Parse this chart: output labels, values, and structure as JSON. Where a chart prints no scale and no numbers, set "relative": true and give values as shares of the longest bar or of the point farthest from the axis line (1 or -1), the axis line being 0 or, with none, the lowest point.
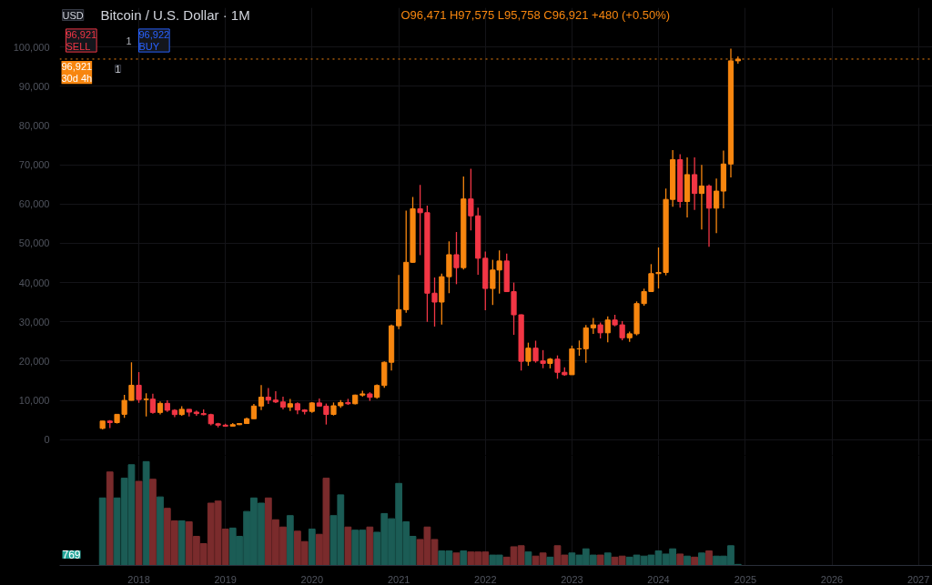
{
  "chart_data": [
    {
      "type": "candlestick",
      "title": "Bitcoin / U.S. Dollar · 1M",
      "annotations": [
        "USD",
        "O96,471 H97,575 L95,758 C96,921 +480 (+0.50%)",
        "96,921 SELL",
        "1",
        "96,922 BUY",
        "1"
      ],
      "x": [
        "2017-08",
        "2017-09",
        "2017-10",
        "2017-11",
        "2017-12",
        "2018-01",
        "2018-02",
        "2018-03",
        "2018-04",
        "2018-05",
        "2018-06",
        "2018-07",
        "2018-08",
        "2018-09",
        "2018-10",
        "2018-11",
        "2018-12",
        "2019-01",
        "2019-02",
        "2019-03",
        "2019-04",
        "2019-05",
        "2019-06",
        "2019-07",
        "2019-08",
        "2019-09",
        "2019-10",
        "2019-11",
        "2019-12",
        "2020-01",
        "2020-02",
        "2020-03",
        "2020-04",
        "2020-05",
        "2020-06",
        "2020-07",
        "2020-08",
        "2020-09",
        "2020-10",
        "2020-11",
        "2020-12",
        "2021-01",
        "2021-02",
        "2021-03",
        "2021-04",
        "2021-05",
        "2021-06",
        "2021-07",
        "2021-08",
        "2021-09",
        "2021-10",
        "2021-11",
        "2021-12",
        "2022-01",
        "2022-02",
        "2022-03",
        "2022-04",
        "2022-05",
        "2022-06",
        "2022-07",
        "2022-08",
        "2022-09",
        "2022-10",
        "2022-11",
        "2022-12",
        "2023-01",
        "2023-02",
        "2023-03",
        "2023-04",
        "2023-05",
        "2023-06",
        "2023-07",
        "2023-08",
        "2023-09",
        "2023-10",
        "2023-11",
        "2023-12",
        "2024-01",
        "2024-02",
        "2024-03",
        "2024-04",
        "2024-05",
        "2024-06",
        "2024-07",
        "2024-08",
        "2024-09",
        "2024-10",
        "2024-11",
        "2024-12"
      ],
      "ohlc": [
        [
          2870,
          4750,
          2620,
          4735
        ],
        [
          4735,
          4975,
          2972,
          4338
        ],
        [
          4338,
          6470,
          4110,
          6450
        ],
        [
          6450,
          11400,
          5550,
          10000
        ],
        [
          10000,
          19666,
          9950,
          13850
        ],
        [
          13850,
          17200,
          9400,
          10220
        ],
        [
          10220,
          11790,
          5920,
          10320
        ],
        [
          10320,
          11700,
          6600,
          6925
        ],
        [
          6925,
          9750,
          6430,
          9240
        ],
        [
          9240,
          9990,
          7060,
          7490
        ],
        [
          7490,
          7760,
          5750,
          6390
        ],
        [
          6390,
          8500,
          6070,
          7730
        ],
        [
          7730,
          7750,
          5880,
          7010
        ],
        [
          7010,
          7400,
          6100,
          6630
        ],
        [
          6630,
          7680,
          6200,
          6370
        ],
        [
          6370,
          6600,
          3650,
          4040
        ],
        [
          4040,
          4260,
          3120,
          3690
        ],
        [
          3690,
          4060,
          3350,
          3440
        ],
        [
          3440,
          4200,
          3390,
          3820
        ],
        [
          3820,
          4150,
          3730,
          4100
        ],
        [
          4100,
          5630,
          4050,
          5320
        ],
        [
          5320,
          9100,
          5320,
          8560
        ],
        [
          8560,
          13880,
          7500,
          10820
        ],
        [
          10820,
          13140,
          9070,
          10080
        ],
        [
          10080,
          12330,
          9340,
          9600
        ],
        [
          9600,
          10950,
          7710,
          8300
        ],
        [
          8300,
          10370,
          7300,
          9150
        ],
        [
          9150,
          9510,
          6500,
          7550
        ],
        [
          7550,
          7740,
          6430,
          7190
        ],
        [
          7190,
          9580,
          6860,
          9350
        ],
        [
          9350,
          10500,
          8450,
          8540
        ],
        [
          8540,
          9190,
          3850,
          6420
        ],
        [
          6420,
          9460,
          6150,
          8630
        ],
        [
          8630,
          10080,
          8110,
          9450
        ],
        [
          9450,
          10390,
          8840,
          9140
        ],
        [
          9140,
          11440,
          8970,
          11350
        ],
        [
          11350,
          12480,
          10950,
          11650
        ],
        [
          11650,
          12070,
          9880,
          10780
        ],
        [
          10780,
          14100,
          10430,
          13800
        ],
        [
          13800,
          19900,
          13200,
          19700
        ],
        [
          19700,
          29300,
          17600,
          28990
        ],
        [
          28990,
          41950,
          28150,
          33110
        ],
        [
          33110,
          58350,
          32300,
          45160
        ],
        [
          45160,
          61780,
          45000,
          58800
        ],
        [
          58800,
          64900,
          47000,
          57800
        ],
        [
          57800,
          59600,
          30000,
          37300
        ],
        [
          37300,
          41300,
          28800,
          35040
        ],
        [
          35040,
          42300,
          29300,
          41500
        ],
        [
          41500,
          50500,
          37300,
          47100
        ],
        [
          47100,
          52900,
          39600,
          43800
        ],
        [
          43800,
          67000,
          43300,
          61300
        ],
        [
          61300,
          69000,
          53300,
          57000
        ],
        [
          57000,
          59100,
          42000,
          46200
        ],
        [
          46200,
          47900,
          32950,
          38500
        ],
        [
          38500,
          45800,
          34300,
          43200
        ],
        [
          43200,
          48200,
          37200,
          45500
        ],
        [
          45500,
          47400,
          37600,
          37700
        ],
        [
          37700,
          40000,
          26700,
          31800
        ],
        [
          31800,
          31900,
          17600,
          19950
        ],
        [
          19950,
          24700,
          18800,
          23300
        ],
        [
          23300,
          25200,
          19600,
          20050
        ],
        [
          20050,
          22800,
          18200,
          19420
        ],
        [
          19420,
          20800,
          18150,
          20500
        ],
        [
          20500,
          21450,
          15500,
          17150
        ],
        [
          17150,
          18400,
          16300,
          16530
        ],
        [
          16530,
          23950,
          16500,
          23120
        ],
        [
          23120,
          25250,
          21350,
          23140
        ],
        [
          23140,
          29200,
          19550,
          28470
        ],
        [
          28470,
          31000,
          26950,
          29230
        ],
        [
          29230,
          29830,
          25800,
          27210
        ],
        [
          27210,
          31400,
          24800,
          30470
        ],
        [
          30470,
          31800,
          28850,
          29230
        ],
        [
          29230,
          30200,
          25300,
          25940
        ],
        [
          25940,
          27500,
          24900,
          26960
        ],
        [
          26960,
          35200,
          26550,
          34650
        ],
        [
          34650,
          38450,
          34100,
          37720
        ],
        [
          37720,
          44700,
          37600,
          42280
        ],
        [
          42280,
          48950,
          38500,
          42580
        ],
        [
          42580,
          63950,
          41850,
          61180
        ],
        [
          61180,
          73750,
          59300,
          71300
        ],
        [
          71300,
          72700,
          59100,
          60650
        ],
        [
          60650,
          71900,
          56600,
          67500
        ],
        [
          67500,
          71900,
          58500,
          62700
        ],
        [
          62700,
          70000,
          53500,
          64600
        ],
        [
          64600,
          65000,
          49100,
          58950
        ],
        [
          58950,
          66500,
          52600,
          63300
        ],
        [
          63300,
          73600,
          58900,
          70200
        ],
        [
          70200,
          99600,
          66800,
          96471
        ],
        [
          96471,
          97575,
          95758,
          96921
        ]
      ],
      "colors": [
        "#f7860f",
        "#f23645",
        "#f7860f",
        "#f7860f",
        "#f7860f",
        "#f23645",
        "#f7860f",
        "#f23645",
        "#f7860f",
        "#f23645",
        "#f23645",
        "#f7860f",
        "#f23645",
        "#f23645",
        "#f23645",
        "#f23645",
        "#f23645",
        "#f23645",
        "#f7860f",
        "#f7860f",
        "#f7860f",
        "#f7860f",
        "#f7860f",
        "#f23645",
        "#f23645",
        "#f23645",
        "#f7860f",
        "#f23645",
        "#f23645",
        "#f7860f",
        "#f23645",
        "#f23645",
        "#f7860f",
        "#f7860f",
        "#f23645",
        "#f7860f",
        "#f7860f",
        "#f23645",
        "#f7860f",
        "#f7860f",
        "#f7860f",
        "#f7860f",
        "#f7860f",
        "#f7860f",
        "#f23645",
        "#f23645",
        "#f23645",
        "#f7860f",
        "#f7860f",
        "#f23645",
        "#f7860f",
        "#f23645",
        "#f23645",
        "#f23645",
        "#f7860f",
        "#f7860f",
        "#f23645",
        "#f23645",
        "#f23645",
        "#f7860f",
        "#f23645",
        "#f23645",
        "#f7860f",
        "#f23645",
        "#f23645",
        "#f7860f",
        "#f7860f",
        "#f7860f",
        "#f7860f",
        "#f23645",
        "#f7860f",
        "#f23645",
        "#f23645",
        "#f7860f",
        "#f7860f",
        "#f7860f",
        "#f7860f",
        "#f7860f",
        "#f7860f",
        "#f7860f",
        "#f23645",
        "#f7860f",
        "#f23645",
        "#f7860f",
        "#f23645",
        "#f7860f",
        "#f7860f",
        "#f7860f",
        "#f7860f"
      ],
      "xlim": [
        "2017-02",
        "2027-03"
      ],
      "xticks": [
        "2018",
        "2019",
        "2020",
        "2021",
        "2022",
        "2023",
        "2024",
        "2025",
        "2026",
        "2027"
      ],
      "ylim": [
        -4000,
        110000
      ],
      "yticks": [
        0,
        {
          "value": 10000,
          "label": "10,000"
        },
        {
          "value": 20000,
          "label": "20,000"
        },
        {
          "value": 30000,
          "label": "30,000"
        },
        {
          "value": 40000,
          "label": "40,000"
        },
        {
          "value": 50000,
          "label": "50,000"
        },
        {
          "value": 60000,
          "label": "60,000"
        },
        {
          "value": 70000,
          "label": "70,000"
        },
        {
          "value": 80000,
          "label": "80,000"
        },
        {
          "value": 90000,
          "label": "90,000"
        },
        {
          "value": 100000,
          "label": "100,000"
        }
      ],
      "ref_lines": [
        {
          "axis": "y",
          "value": 96921,
          "label": "96,921\n30d 4h",
          "color": "#f7860f",
          "line_style": "dotted"
        }
      ],
      "tick_labels": "y",
      "grid": true
    },
    {
      "type": "bar",
      "relative": true,
      "annotations": [
        "769"
      ],
      "x": [
        "2017-08",
        "2017-09",
        "2017-10",
        "2017-11",
        "2017-12",
        "2018-01",
        "2018-02",
        "2018-03",
        "2018-04",
        "2018-05",
        "2018-06",
        "2018-07",
        "2018-08",
        "2018-09",
        "2018-10",
        "2018-11",
        "2018-12",
        "2019-01",
        "2019-02",
        "2019-03",
        "2019-04",
        "2019-05",
        "2019-06",
        "2019-07",
        "2019-08",
        "2019-09",
        "2019-10",
        "2019-11",
        "2019-12",
        "2020-01",
        "2020-02",
        "2020-03",
        "2020-04",
        "2020-05",
        "2020-06",
        "2020-07",
        "2020-08",
        "2020-09",
        "2020-10",
        "2020-11",
        "2020-12",
        "2021-01",
        "2021-02",
        "2021-03",
        "2021-04",
        "2021-05",
        "2021-06",
        "2021-07",
        "2021-08",
        "2021-09",
        "2021-10",
        "2021-11",
        "2021-12",
        "2022-01",
        "2022-02",
        "2022-03",
        "2022-04",
        "2022-05",
        "2022-06",
        "2022-07",
        "2022-08",
        "2022-09",
        "2022-10",
        "2022-11",
        "2022-12",
        "2023-01",
        "2023-02",
        "2023-03",
        "2023-04",
        "2023-05",
        "2023-06",
        "2023-07",
        "2023-08",
        "2023-09",
        "2023-10",
        "2023-11",
        "2023-12",
        "2024-01",
        "2024-02",
        "2024-03",
        "2024-04",
        "2024-05",
        "2024-06",
        "2024-07",
        "2024-08",
        "2024-09",
        "2024-10",
        "2024-11",
        "2024-12"
      ],
      "values": [
        0.65,
        0.9,
        0.65,
        0.84,
        0.97,
        0.81,
        1.0,
        0.83,
        0.66,
        0.55,
        0.43,
        0.43,
        0.42,
        0.28,
        0.21,
        0.6,
        0.62,
        0.35,
        0.36,
        0.28,
        0.52,
        0.65,
        0.6,
        0.65,
        0.44,
        0.37,
        0.48,
        0.33,
        0.23,
        0.35,
        0.3,
        0.84,
        0.48,
        0.68,
        0.37,
        0.34,
        0.34,
        0.37,
        0.32,
        0.5,
        0.45,
        0.79,
        0.42,
        0.28,
        0.25,
        0.37,
        0.25,
        0.14,
        0.14,
        0.12,
        0.14,
        0.13,
        0.13,
        0.13,
        0.1,
        0.1,
        0.08,
        0.18,
        0.19,
        0.13,
        0.09,
        0.12,
        0.08,
        0.19,
        0.1,
        0.12,
        0.1,
        0.16,
        0.1,
        0.1,
        0.12,
        0.08,
        0.09,
        0.08,
        0.1,
        0.09,
        0.1,
        0.14,
        0.11,
        0.16,
        0.11,
        0.09,
        0.08,
        0.12,
        0.14,
        0.09,
        0.09,
        0.19,
        0.01
      ],
      "colors": [
        "#1b5c55",
        "#7a2b2c",
        "#1b5c55",
        "#1b5c55",
        "#1b5c55",
        "#7a2b2c",
        "#1b5c55",
        "#7a2b2c",
        "#1b5c55",
        "#7a2b2c",
        "#7a2b2c",
        "#1b5c55",
        "#7a2b2c",
        "#7a2b2c",
        "#7a2b2c",
        "#7a2b2c",
        "#7a2b2c",
        "#7a2b2c",
        "#1b5c55",
        "#1b5c55",
        "#1b5c55",
        "#1b5c55",
        "#1b5c55",
        "#7a2b2c",
        "#7a2b2c",
        "#7a2b2c",
        "#1b5c55",
        "#7a2b2c",
        "#7a2b2c",
        "#1b5c55",
        "#7a2b2c",
        "#7a2b2c",
        "#1b5c55",
        "#1b5c55",
        "#7a2b2c",
        "#1b5c55",
        "#1b5c55",
        "#7a2b2c",
        "#1b5c55",
        "#1b5c55",
        "#1b5c55",
        "#1b5c55",
        "#1b5c55",
        "#1b5c55",
        "#7a2b2c",
        "#7a2b2c",
        "#7a2b2c",
        "#1b5c55",
        "#1b5c55",
        "#7a2b2c",
        "#1b5c55",
        "#7a2b2c",
        "#7a2b2c",
        "#7a2b2c",
        "#1b5c55",
        "#1b5c55",
        "#7a2b2c",
        "#7a2b2c",
        "#7a2b2c",
        "#1b5c55",
        "#7a2b2c",
        "#7a2b2c",
        "#1b5c55",
        "#7a2b2c",
        "#7a2b2c",
        "#1b5c55",
        "#1b5c55",
        "#1b5c55",
        "#1b5c55",
        "#7a2b2c",
        "#1b5c55",
        "#7a2b2c",
        "#7a2b2c",
        "#1b5c55",
        "#1b5c55",
        "#1b5c55",
        "#1b5c55",
        "#1b5c55",
        "#1b5c55",
        "#1b5c55",
        "#7a2b2c",
        "#1b5c55",
        "#7a2b2c",
        "#1b5c55",
        "#7a2b2c",
        "#1b5c55",
        "#1b5c55",
        "#1b5c55",
        "#1b5c55"
      ],
      "xlim": [
        "2017-02",
        "2027-03"
      ],
      "xticks": [
        "2018",
        "2019",
        "2020",
        "2021",
        "2022",
        "2023",
        "2024",
        "2025",
        "2026",
        "2027"
      ],
      "tick_labels": "x",
      "grid": "x"
    }
  ]
}
